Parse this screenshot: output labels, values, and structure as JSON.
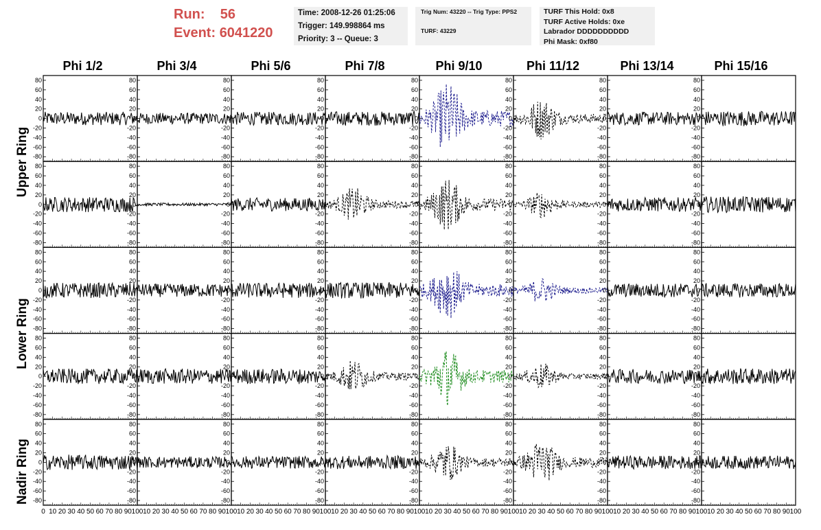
{
  "header": {
    "run_label": "Run:",
    "run_value": "56",
    "event_label": "Event:",
    "event_value": "6041220",
    "time": "Time: 2008-12-26 01:25:06",
    "trigger": "Trigger: 149.998864 ms",
    "priority": "Priority: 3 -- Queue: 3",
    "trig_num": "Trig Num: 43220 -- Trig Type: PPS2",
    "turf": "TURF: 43229",
    "turf_this_hold": "TURF This Hold: 0x8",
    "turf_active_holds": "TURF Active Holds: 0xe",
    "labrador": "Labrador DDDDDDDDDD",
    "phi_mask": "Phi Mask: 0xf80"
  },
  "columns": [
    "Phi 1/2",
    "Phi 3/4",
    "Phi 5/6",
    "Phi 7/8",
    "Phi 9/10",
    "Phi 11/12",
    "Phi 13/14",
    "Phi 15/16"
  ],
  "rings": [
    "Upper Ring",
    "Lower Ring",
    "Nadir Ring"
  ],
  "colors": {
    "black": "#000000",
    "blue": "#1a1a8c",
    "green": "#1e8c1e",
    "header_red": "#d1504e"
  },
  "chart_data": {
    "type": "line",
    "xlim": [
      0,
      100
    ],
    "ylim": [
      -90,
      90
    ],
    "xticks": [
      0,
      10,
      20,
      30,
      40,
      50,
      60,
      70,
      80,
      90,
      100
    ],
    "yticks": [
      -80,
      -60,
      -40,
      -20,
      0,
      20,
      40,
      60,
      80
    ],
    "rows": 5,
    "cols": 8,
    "panels": [
      [
        {
          "style": "solid",
          "color": "black",
          "amp": 14
        },
        {
          "style": "solid",
          "color": "black",
          "amp": 12
        },
        {
          "style": "solid",
          "color": "black",
          "amp": 14
        },
        {
          "style": "solid",
          "color": "black",
          "amp": 15
        },
        {
          "style": "dashed",
          "color": "blue",
          "amp": 38
        },
        {
          "style": "dashed",
          "color": "black",
          "amp": 22
        },
        {
          "style": "solid",
          "color": "black",
          "amp": 14
        },
        {
          "style": "solid",
          "color": "black",
          "amp": 16
        }
      ],
      [
        {
          "style": "solid",
          "color": "black",
          "amp": 16
        },
        {
          "style": "solid",
          "color": "black",
          "amp": 3
        },
        {
          "style": "solid",
          "color": "black",
          "amp": 14
        },
        {
          "style": "dashed",
          "color": "black",
          "amp": 18
        },
        {
          "style": "dashed",
          "color": "black",
          "amp": 28
        },
        {
          "style": "dashed",
          "color": "black",
          "amp": 14
        },
        {
          "style": "solid",
          "color": "black",
          "amp": 15
        },
        {
          "style": "solid",
          "color": "black",
          "amp": 17
        }
      ],
      [
        {
          "style": "solid",
          "color": "black",
          "amp": 16
        },
        {
          "style": "solid",
          "color": "black",
          "amp": 14
        },
        {
          "style": "solid",
          "color": "black",
          "amp": 16
        },
        {
          "style": "solid",
          "color": "black",
          "amp": 17
        },
        {
          "style": "dashed",
          "color": "blue",
          "amp": 30
        },
        {
          "style": "dashed",
          "color": "blue",
          "amp": 14
        },
        {
          "style": "solid",
          "color": "black",
          "amp": 15
        },
        {
          "style": "solid",
          "color": "black",
          "amp": 15
        }
      ],
      [
        {
          "style": "solid",
          "color": "black",
          "amp": 16
        },
        {
          "style": "solid",
          "color": "black",
          "amp": 16
        },
        {
          "style": "solid",
          "color": "black",
          "amp": 16
        },
        {
          "style": "dashed",
          "color": "black",
          "amp": 18
        },
        {
          "style": "dashed",
          "color": "green",
          "amp": 30
        },
        {
          "style": "dashed",
          "color": "black",
          "amp": 14
        },
        {
          "style": "solid",
          "color": "black",
          "amp": 15
        },
        {
          "style": "solid",
          "color": "black",
          "amp": 17
        }
      ],
      [
        {
          "style": "solid",
          "color": "black",
          "amp": 16
        },
        {
          "style": "solid",
          "color": "black",
          "amp": 12
        },
        {
          "style": "solid",
          "color": "black",
          "amp": 13
        },
        {
          "style": "solid",
          "color": "black",
          "amp": 14
        },
        {
          "style": "dashed",
          "color": "black",
          "amp": 20
        },
        {
          "style": "dashed",
          "color": "black",
          "amp": 24
        },
        {
          "style": "solid",
          "color": "black",
          "amp": 14
        },
        {
          "style": "solid",
          "color": "black",
          "amp": 14
        }
      ]
    ]
  }
}
